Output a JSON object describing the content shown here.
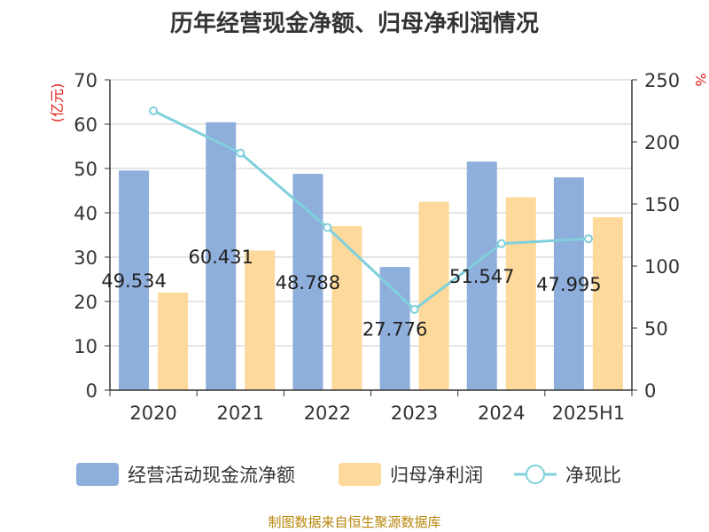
{
  "page": {
    "title": "历年经营现金净额、归母净利润情况",
    "source": "制图数据来自恒生聚源数据库"
  },
  "colors": {
    "cash_flow": "#8eaedb",
    "net_profit": "#fdd99b",
    "ratio": "#7fd0dc",
    "axis": "#333333",
    "grid": "#cccccc",
    "unit": "#e02020"
  },
  "chart_data": {
    "type": "bar",
    "title": "历年经营现金净额、归母净利润情况",
    "categories": [
      "2020",
      "2021",
      "2022",
      "2023",
      "2024",
      "2025H1"
    ],
    "y_left": {
      "label": "(亿元)",
      "ylim": [
        0,
        70
      ],
      "ticks": [
        0,
        10,
        20,
        30,
        40,
        50,
        60,
        70
      ]
    },
    "y_right": {
      "label": "%",
      "ylim": [
        0,
        250
      ],
      "ticks": [
        0,
        50,
        100,
        150,
        200,
        250
      ]
    },
    "grid": true,
    "legend_position": "bottom",
    "series": [
      {
        "name": "经营活动现金流净额",
        "kind": "bar",
        "axis": "left",
        "values": [
          49.534,
          60.431,
          48.788,
          27.776,
          51.547,
          47.995
        ],
        "labels": [
          "49.534",
          "60.431",
          "48.788",
          "27.776",
          "51.547",
          "47.995"
        ]
      },
      {
        "name": "归母净利润",
        "kind": "bar",
        "axis": "left",
        "values": [
          22,
          31.5,
          37,
          42.5,
          43.5,
          39
        ]
      },
      {
        "name": "净现比",
        "kind": "line",
        "axis": "right",
        "values": [
          225,
          191,
          131,
          65,
          118,
          122
        ]
      }
    ]
  }
}
